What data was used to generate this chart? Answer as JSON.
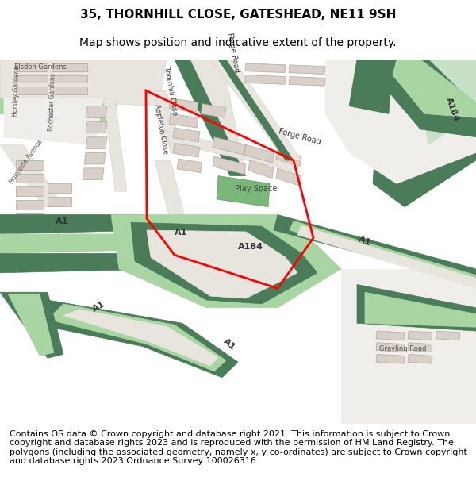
{
  "title": "35, THORNHILL CLOSE, GATESHEAD, NE11 9SH",
  "subtitle": "Map shows position and indicative extent of the property.",
  "footer": "Contains OS data © Crown copyright and database right 2021. This information is subject to Crown copyright and database rights 2023 and is reproduced with the permission of HM Land Registry. The polygons (including the associated geometry, namely x, y co-ordinates) are subject to Crown copyright and database rights 2023 Ordnance Survey 100026316.",
  "title_fontsize": 11,
  "subtitle_fontsize": 10,
  "footer_fontsize": 8,
  "map_bg": "#f0eeeb",
  "road_green_dark": "#4a7c59",
  "road_green_light": "#a8d5a2",
  "building_fill": "#d9d0c9",
  "building_stroke": "#b0a89e",
  "red_line": "#ff0000",
  "green_space": "#7ab87a"
}
